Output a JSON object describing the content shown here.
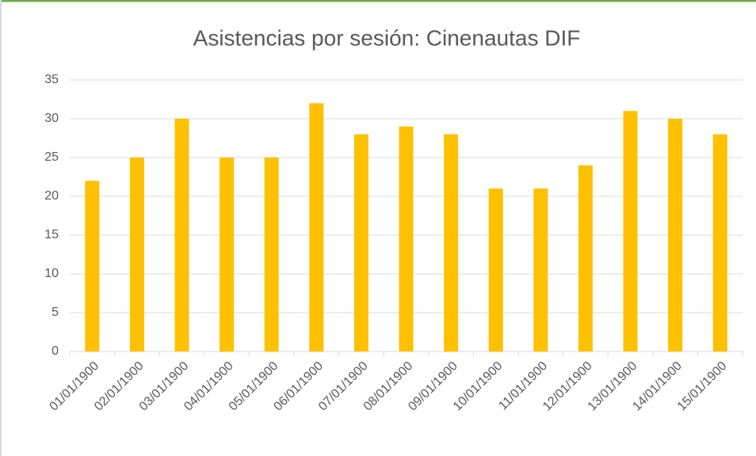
{
  "chart_data": {
    "type": "bar",
    "title": "Asistencias por sesión: Cinenautas DIF",
    "categories": [
      "01/01/1900",
      "02/01/1900",
      "03/01/1900",
      "04/01/1900",
      "05/01/1900",
      "06/01/1900",
      "07/01/1900",
      "08/01/1900",
      "09/01/1900",
      "10/01/1900",
      "11/01/1900",
      "12/01/1900",
      "13/01/1900",
      "14/01/1900",
      "15/01/1900"
    ],
    "values": [
      22,
      25,
      30,
      25,
      25,
      32,
      28,
      29,
      28,
      21,
      21,
      24,
      31,
      30,
      28
    ],
    "color": "#ffc000",
    "ylim": [
      0,
      35
    ],
    "yticks": [
      0,
      5,
      10,
      15,
      20,
      25,
      30,
      35
    ],
    "grid": true
  }
}
